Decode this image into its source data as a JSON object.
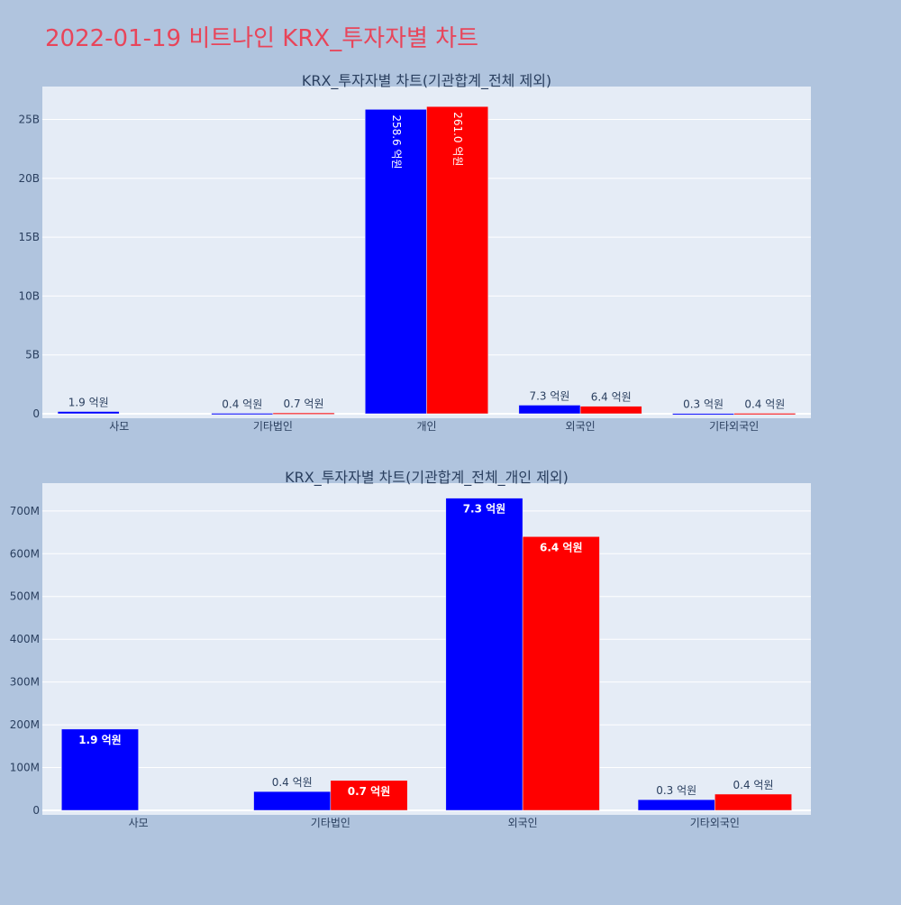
{
  "page": {
    "title": "2022-01-19 비트나인 KRX_투자자별 차트"
  },
  "colors": {
    "background": "#b0c4de",
    "plot_bg": "#e5ecf6",
    "grid": "#ffffff",
    "buy": "#0000ff",
    "sell": "#ff0000",
    "title": "#e8455a",
    "text": "#2a3f5f"
  },
  "chart_data": [
    {
      "type": "bar",
      "title": "KRX_투자자별 차트(기관합계_전체 제외)",
      "categories": [
        "사모",
        "기타법인",
        "개인",
        "외국인",
        "기타외국인"
      ],
      "series": [
        {
          "color": "#0000ff",
          "values": [
            190000000,
            40000000,
            25860000000,
            730000000,
            30000000
          ],
          "labels": [
            "1.9 억원",
            "0.4 억원",
            "258.6 억원",
            "7.3 억원",
            "0.3 억원"
          ]
        },
        {
          "color": "#ff0000",
          "values": [
            0,
            70000000,
            26100000000,
            640000000,
            40000000
          ],
          "labels": [
            "",
            "0.7 억원",
            "261.0 억원",
            "6.4 억원",
            "0.4 억원"
          ]
        }
      ],
      "ylim": [
        0,
        27800000000
      ],
      "yticks": [
        0,
        5000000000,
        10000000000,
        15000000000,
        20000000000,
        25000000000
      ],
      "ytick_labels": [
        "0",
        "5B",
        "10B",
        "15B",
        "20B",
        "25B"
      ],
      "grid": true,
      "label_rotation": [
        0,
        0,
        90,
        0,
        0
      ]
    },
    {
      "type": "bar",
      "title": "KRX_투자자별 차트(기관합계_전체_개인 제외)",
      "categories": [
        "사모",
        "기타법인",
        "외국인",
        "기타외국인"
      ],
      "series": [
        {
          "color": "#0000ff",
          "values": [
            190000000,
            44000000,
            730000000,
            25000000
          ],
          "labels": [
            "1.9 억원",
            "0.4 억원",
            "7.3 억원",
            "0.3 억원"
          ]
        },
        {
          "color": "#ff0000",
          "values": [
            0,
            70000000,
            640000000,
            38000000
          ],
          "labels": [
            "",
            "0.7 억원",
            "6.4 억원",
            "0.4 억원"
          ]
        }
      ],
      "ylim": [
        0,
        765000000
      ],
      "yticks": [
        0,
        100000000,
        200000000,
        300000000,
        400000000,
        500000000,
        600000000,
        700000000
      ],
      "ytick_labels": [
        "0",
        "100M",
        "200M",
        "300M",
        "400M",
        "500M",
        "600M",
        "700M"
      ],
      "grid": true
    }
  ]
}
